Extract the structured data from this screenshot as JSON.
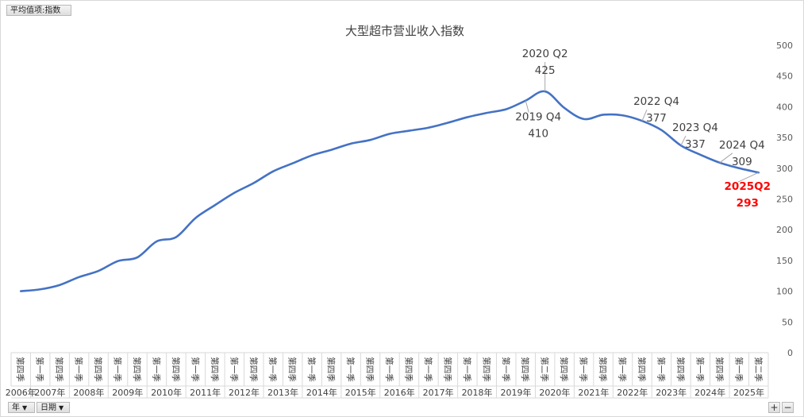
{
  "field_buttons": {
    "value_field": "平均值项:指数",
    "row_field_year": "年",
    "row_field_date": "日期"
  },
  "zoom": {
    "plus": "+",
    "minus": "−"
  },
  "chart_data": {
    "type": "line",
    "title": "大型超市营业收入指数",
    "xlabel": "",
    "ylabel": "",
    "ylim": [
      0,
      500
    ],
    "yticks": [
      0,
      50,
      100,
      150,
      200,
      250,
      300,
      350,
      400,
      450,
      500
    ],
    "grid": false,
    "legend": "none",
    "line_color": "#4472C4",
    "highlight_color": "#FF0000",
    "years": [
      "2006年",
      "2007年",
      "2008年",
      "2009年",
      "2010年",
      "2011年",
      "2012年",
      "2013年",
      "2014年",
      "2015年",
      "2016年",
      "2017年",
      "2018年",
      "2019年",
      "2020年",
      "2021年",
      "2022年",
      "2023年",
      "2024年",
      "2025年"
    ],
    "quarters": [
      {
        "year": "2006年",
        "label": "第四季",
        "value": 100
      },
      {
        "year": "2007年",
        "label": "第一季",
        "value": 103
      },
      {
        "year": "2007年",
        "label": "第四季",
        "value": 110
      },
      {
        "year": "2008年",
        "label": "第一季",
        "value": 123
      },
      {
        "year": "2008年",
        "label": "第四季",
        "value": 133
      },
      {
        "year": "2009年",
        "label": "第一季",
        "value": 149
      },
      {
        "year": "2009年",
        "label": "第四季",
        "value": 155
      },
      {
        "year": "2010年",
        "label": "第一季",
        "value": 181
      },
      {
        "year": "2010年",
        "label": "第四季",
        "value": 188
      },
      {
        "year": "2011年",
        "label": "第一季",
        "value": 219
      },
      {
        "year": "2011年",
        "label": "第四季",
        "value": 240
      },
      {
        "year": "2012年",
        "label": "第一季",
        "value": 260
      },
      {
        "year": "2012年",
        "label": "第四季",
        "value": 276
      },
      {
        "year": "2013年",
        "label": "第一季",
        "value": 295
      },
      {
        "year": "2013年",
        "label": "第四季",
        "value": 308
      },
      {
        "year": "2014年",
        "label": "第一季",
        "value": 321
      },
      {
        "year": "2014年",
        "label": "第四季",
        "value": 330
      },
      {
        "year": "2015年",
        "label": "第一季",
        "value": 340
      },
      {
        "year": "2015年",
        "label": "第四季",
        "value": 346
      },
      {
        "year": "2016年",
        "label": "第一季",
        "value": 356
      },
      {
        "year": "2016年",
        "label": "第四季",
        "value": 361
      },
      {
        "year": "2017年",
        "label": "第一季",
        "value": 366
      },
      {
        "year": "2017年",
        "label": "第四季",
        "value": 374
      },
      {
        "year": "2018年",
        "label": "第一季",
        "value": 383
      },
      {
        "year": "2018年",
        "label": "第四季",
        "value": 390
      },
      {
        "year": "2019年",
        "label": "第一季",
        "value": 396
      },
      {
        "year": "2019年",
        "label": "第四季",
        "value": 410
      },
      {
        "year": "2020年",
        "label": "第二季",
        "value": 425
      },
      {
        "year": "2020年",
        "label": "第四季",
        "value": 398
      },
      {
        "year": "2021年",
        "label": "第一季",
        "value": 380
      },
      {
        "year": "2021年",
        "label": "第四季",
        "value": 387
      },
      {
        "year": "2022年",
        "label": "第一季",
        "value": 386
      },
      {
        "year": "2022年",
        "label": "第四季",
        "value": 377
      },
      {
        "year": "2023年",
        "label": "第一季",
        "value": 362
      },
      {
        "year": "2023年",
        "label": "第四季",
        "value": 337
      },
      {
        "year": "2024年",
        "label": "第一季",
        "value": 322
      },
      {
        "year": "2024年",
        "label": "第四季",
        "value": 309
      },
      {
        "year": "2025年",
        "label": "第一季",
        "value": 300
      },
      {
        "year": "2025年",
        "label": "第二季",
        "value": 293
      }
    ],
    "annotations": [
      {
        "period": "2019 Q4",
        "value": "410",
        "anchor": 26,
        "dx": 16,
        "dy": 25,
        "anchor_text": "middle",
        "highlight": false
      },
      {
        "period": "2020 Q2",
        "value": "425",
        "anchor": 27,
        "dx": 0,
        "dy": -43,
        "anchor_text": "middle",
        "highlight": false
      },
      {
        "period": "2022 Q4",
        "value": "377",
        "anchor": 32,
        "dx": 18,
        "dy": -20,
        "anchor_text": "middle",
        "highlight": false
      },
      {
        "period": "2023 Q4",
        "value": "337",
        "anchor": 34,
        "dx": 18,
        "dy": -18,
        "anchor_text": "middle",
        "highlight": false
      },
      {
        "period": "2024 Q4",
        "value": "309",
        "anchor": 36,
        "dx": 28,
        "dy": -18,
        "anchor_text": "middle",
        "highlight": false
      },
      {
        "period": "2025Q2",
        "value": "293",
        "anchor": 38,
        "dx": -14,
        "dy": 22,
        "anchor_text": "middle",
        "highlight": true
      }
    ]
  }
}
